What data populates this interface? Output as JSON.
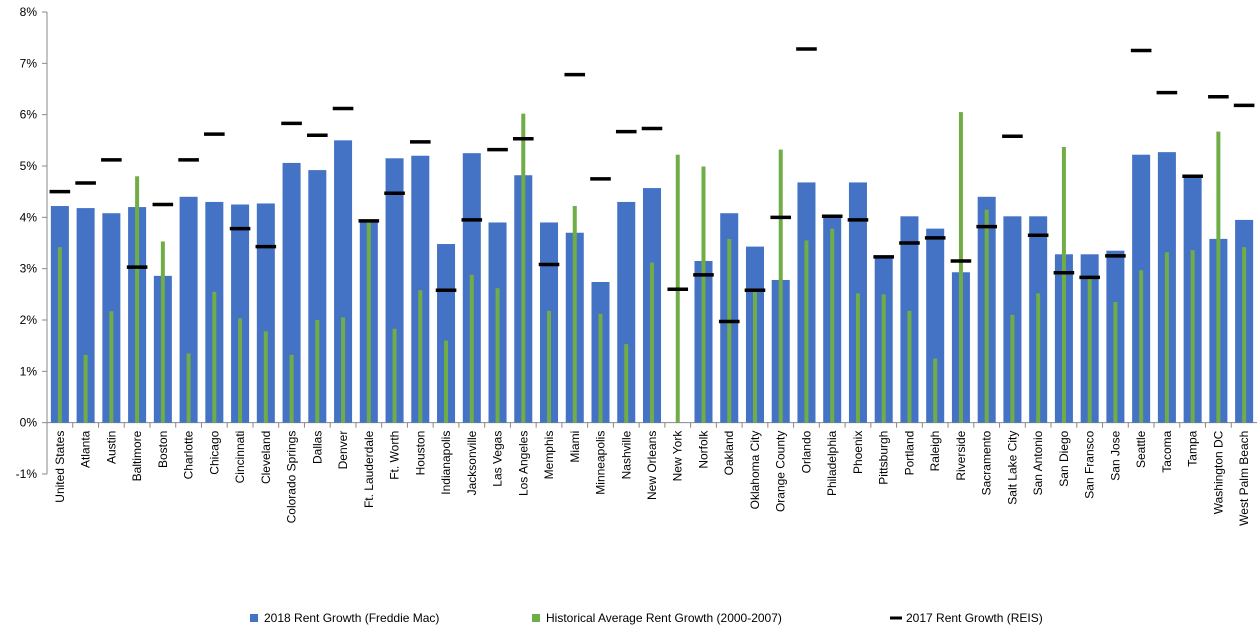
{
  "chart_data": {
    "type": "bar",
    "categories": [
      "United States",
      "Atlanta",
      "Austin",
      "Baltimore",
      "Boston",
      "Charlotte",
      "Chicago",
      "Cincinnati",
      "Cleveland",
      "Colorado Springs",
      "Dallas",
      "Denver",
      "Ft. Lauderdale",
      "Ft. Worth",
      "Houston",
      "Indianapolis",
      "Jacksonville",
      "Las Vegas",
      "Los Angeles",
      "Memphis",
      "Miami",
      "Minneapolis",
      "Nashville",
      "New Orleans",
      "New York",
      "Norfolk",
      "Oakland",
      "Oklahoma City",
      "Orange County",
      "Orlando",
      "Philadelphia",
      "Phoenix",
      "Pittsburgh",
      "Portland",
      "Raleigh",
      "Riverside",
      "Sacramento",
      "Salt Lake City",
      "San Antonio",
      "San Diego",
      "San Fransco",
      "San Jose",
      "Seattle",
      "Tacoma",
      "Tampa",
      "Washington DC",
      "West Palm Beach"
    ],
    "series": [
      {
        "name": "2018 Rent Growth (Freddie Mac)",
        "color": "#4472c4",
        "mark": "bar",
        "values": [
          4.22,
          4.18,
          4.08,
          4.2,
          2.86,
          4.4,
          4.3,
          4.25,
          4.27,
          5.06,
          4.92,
          5.5,
          3.9,
          5.15,
          5.2,
          3.48,
          5.25,
          3.9,
          4.82,
          3.9,
          3.7,
          2.74,
          4.3,
          4.57,
          null,
          3.15,
          4.08,
          3.43,
          2.78,
          4.68,
          4.0,
          4.68,
          3.22,
          4.02,
          3.78,
          2.93,
          4.4,
          4.02,
          4.02,
          3.28,
          3.28,
          3.35,
          5.22,
          5.27,
          4.82,
          3.58,
          3.95
        ]
      },
      {
        "name": "Historical Average Rent Growth (2000-2007)",
        "color": "#70ad47",
        "mark": "thin-bar",
        "values": [
          3.42,
          1.32,
          2.17,
          4.8,
          3.53,
          1.35,
          2.55,
          2.03,
          1.78,
          1.32,
          2.0,
          2.05,
          3.9,
          1.83,
          2.58,
          1.6,
          2.88,
          2.62,
          6.02,
          2.18,
          4.22,
          2.12,
          1.53,
          3.12,
          5.22,
          4.99,
          3.58,
          2.6,
          5.32,
          3.55,
          3.78,
          2.52,
          2.5,
          2.18,
          1.25,
          6.05,
          4.15,
          2.1,
          2.52,
          5.37,
          2.85,
          2.35,
          2.97,
          3.32,
          3.36,
          5.67,
          3.42
        ]
      },
      {
        "name": "2017 Rent Growth (REIS)",
        "color": "#000000",
        "mark": "dash",
        "values": [
          4.5,
          4.67,
          5.12,
          3.03,
          4.25,
          5.12,
          5.62,
          3.78,
          3.43,
          5.83,
          5.6,
          6.12,
          3.93,
          4.47,
          5.47,
          2.58,
          3.95,
          5.32,
          5.53,
          3.08,
          6.78,
          4.75,
          5.67,
          5.73,
          2.6,
          2.88,
          1.97,
          2.58,
          4.0,
          7.28,
          4.02,
          3.95,
          3.23,
          3.5,
          3.6,
          3.15,
          3.82,
          5.58,
          3.65,
          2.92,
          2.83,
          3.25,
          7.25,
          6.43,
          4.8,
          6.35,
          6.18
        ]
      }
    ],
    "ylim": [
      -1,
      8
    ],
    "yticks": [
      {
        "value": -1,
        "label": "-1%"
      },
      {
        "value": 0,
        "label": "0%"
      },
      {
        "value": 1,
        "label": "1%"
      },
      {
        "value": 2,
        "label": "2%"
      },
      {
        "value": 3,
        "label": "3%"
      },
      {
        "value": 4,
        "label": "4%"
      },
      {
        "value": 5,
        "label": "5%"
      },
      {
        "value": 6,
        "label": "6%"
      },
      {
        "value": 7,
        "label": "7%"
      },
      {
        "value": 8,
        "label": "8%"
      }
    ],
    "grid": false
  }
}
